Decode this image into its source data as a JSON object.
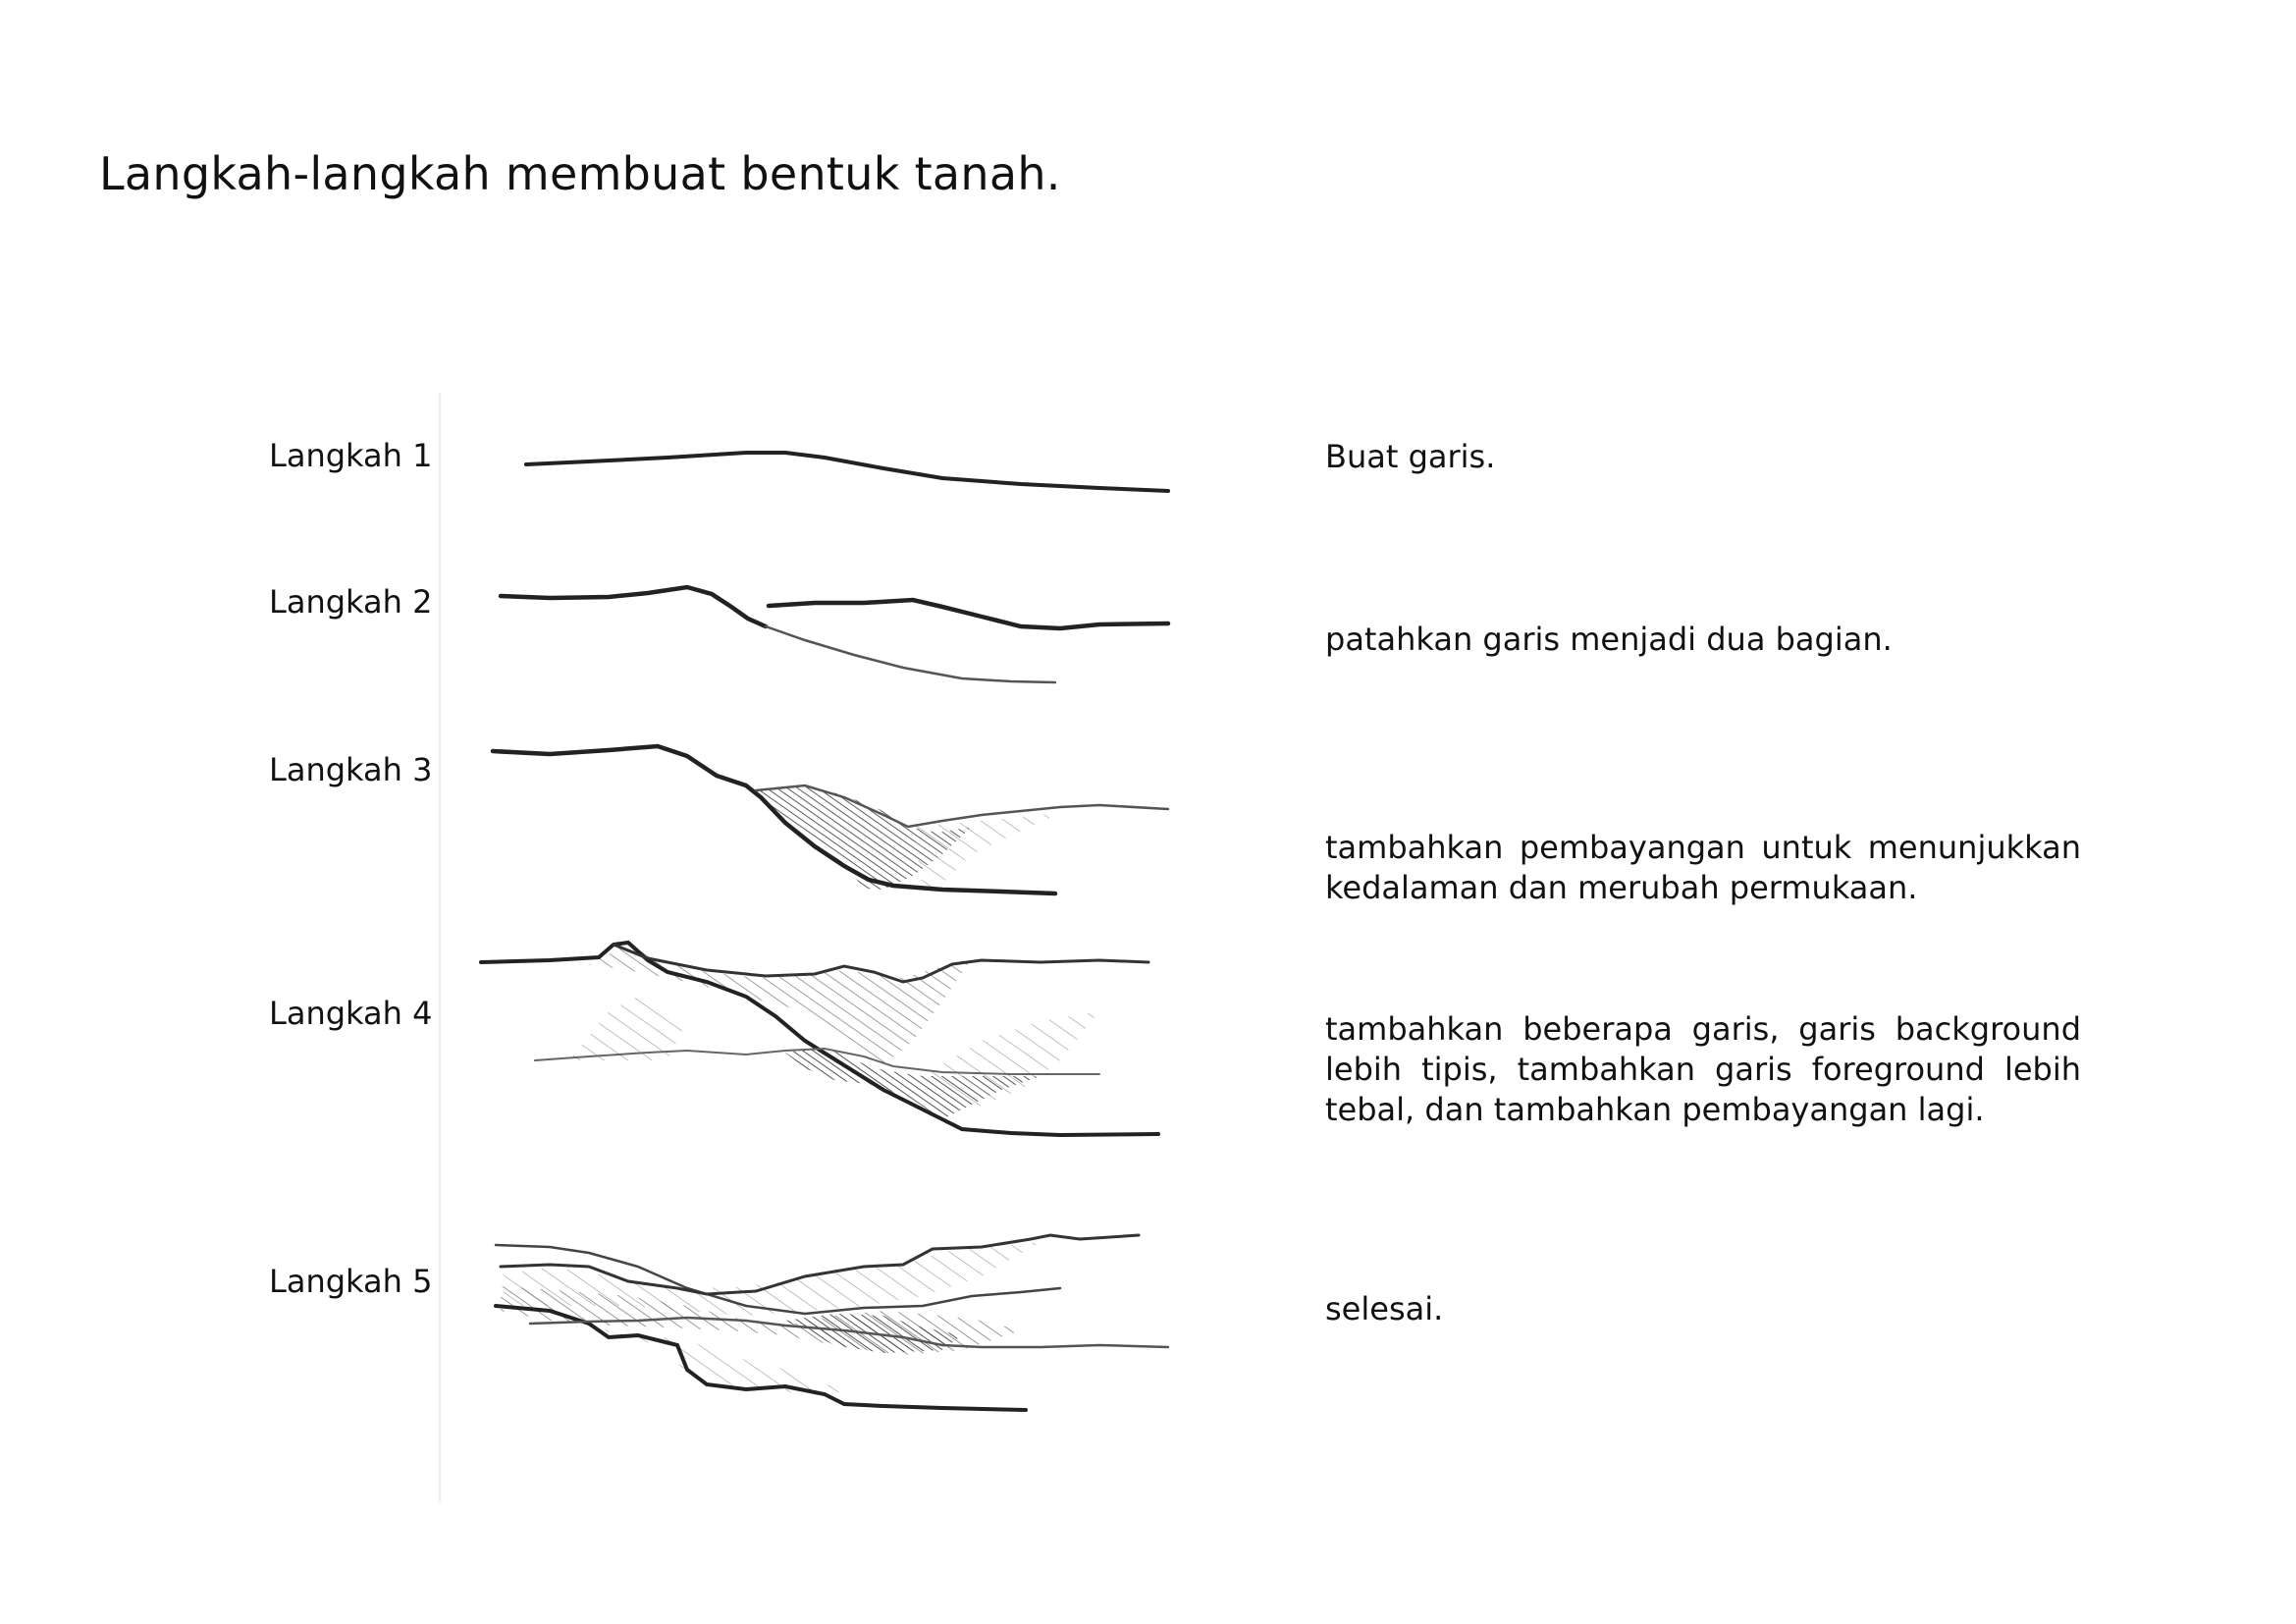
{
  "title": "Langkah-langkah membuat bentuk tanah.",
  "steps": [
    {
      "label": "Langkah 1",
      "description": "Buat garis."
    },
    {
      "label": "Langkah 2",
      "description": "patahkan garis menjadi dua bagian."
    },
    {
      "label": "Langkah 3",
      "description": "tambahkan pembayangan untuk menunjukkan kedalaman dan merubah permukaan."
    },
    {
      "label": "Langkah 4",
      "description": "tambahkan beberapa garis, garis background lebih tipis, tambahkan garis foreground lebih tebal, dan tambahkan pembayangan lagi."
    },
    {
      "label": "Langkah 5",
      "description": "selesai."
    }
  ]
}
